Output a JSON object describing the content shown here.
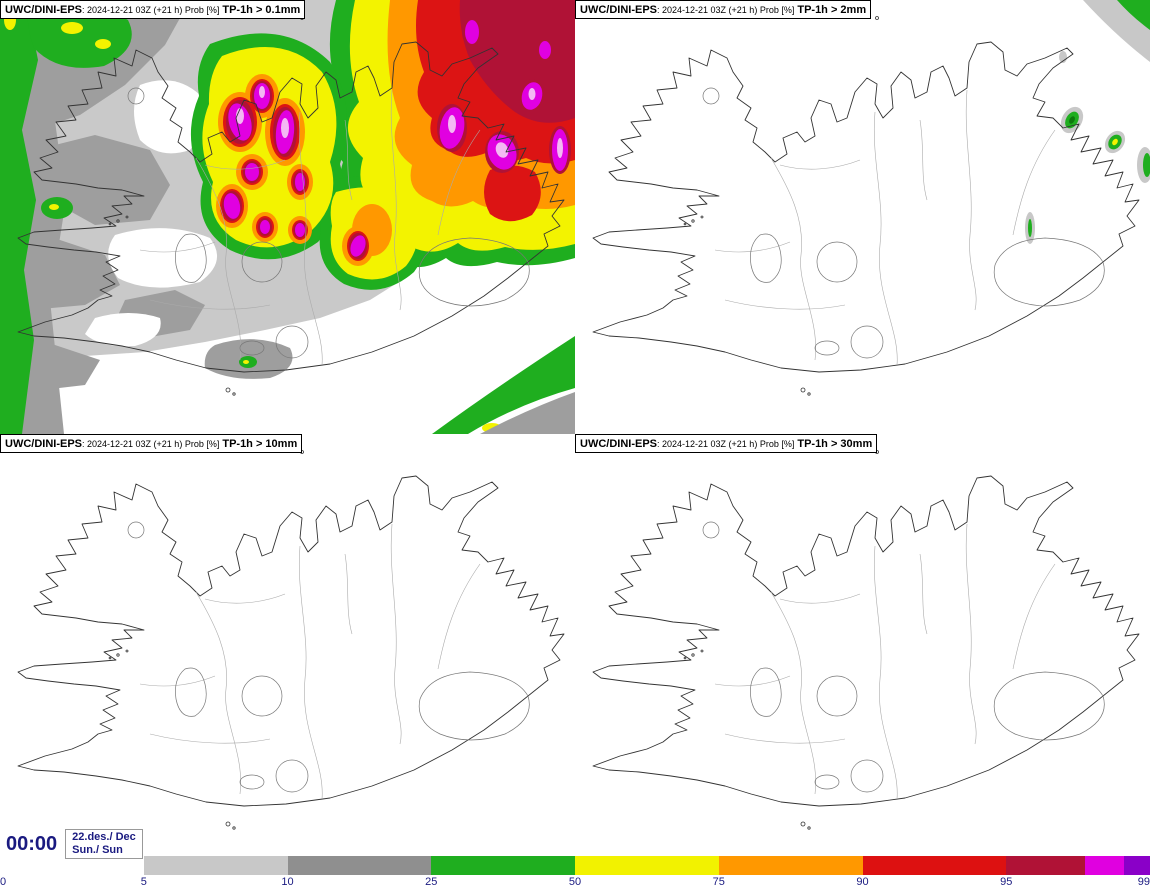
{
  "panels": [
    {
      "model": "UWC/DINI-EPS",
      "meta": ": 2024-12-21 03Z (+21 h) Prob [%]",
      "threshold": "TP-1h > 0.1mm"
    },
    {
      "model": "UWC/DINI-EPS",
      "meta": ": 2024-12-21 03Z (+21 h) Prob [%]",
      "threshold": "TP-1h > 2mm"
    },
    {
      "model": "UWC/DINI-EPS",
      "meta": ": 2024-12-21 03Z (+21 h) Prob [%]",
      "threshold": "TP-1h > 10mm"
    },
    {
      "model": "UWC/DINI-EPS",
      "meta": ": 2024-12-21 03Z (+21 h) Prob [%]",
      "threshold": "TP-1h > 30mm"
    }
  ],
  "footer": {
    "valid_time": "00:00",
    "date_line1": "22.des./ Dec",
    "date_line2": "Sun./ Sun"
  },
  "colorbar": {
    "ticks": [
      "0",
      "5",
      "10",
      "25",
      "50",
      "75",
      "90",
      "95",
      "99"
    ],
    "segments": [
      {
        "range": "0-5",
        "color": "#ffffff"
      },
      {
        "range": "5-10",
        "color": "#c8c8c8"
      },
      {
        "range": "10-25",
        "color": "#8f8f8f"
      },
      {
        "range": "25-50",
        "color": "#1fae1f"
      },
      {
        "range": "50-75",
        "color": "#f2f200"
      },
      {
        "range": "75-90",
        "color": "#ff9800"
      },
      {
        "range": "90-95",
        "color": "#dd1111"
      },
      {
        "range": "95-99+",
        "colors": [
          "#b01236",
          "#e000e0",
          "#8a00c8"
        ]
      }
    ]
  }
}
